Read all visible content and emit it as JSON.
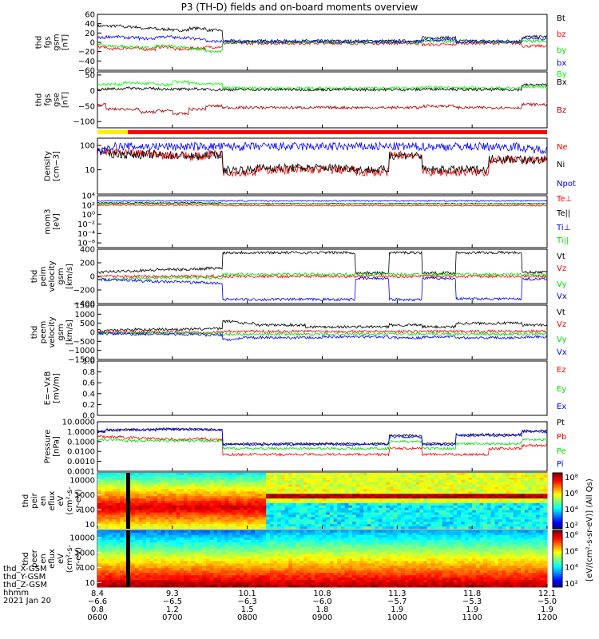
{
  "title": "P3 (TH-D) fields and on-board moments overview",
  "colors": {
    "black": "#000000",
    "red": "#ff0000",
    "green": "#00dd00",
    "blue": "#0000ff",
    "darkred": "#aa0000",
    "lime": "#00ff00"
  },
  "chart_data": [
    {
      "type": "line",
      "ylabel": [
        "thd",
        "fgs",
        "gsm",
        "[nT]"
      ],
      "ylim": [
        -60,
        60
      ],
      "yticks": [
        "60",
        "40",
        "20",
        "0",
        "−20",
        "−40",
        "−60"
      ],
      "series": [
        {
          "name": "Bt",
          "color": "#000000",
          "profile": [
            35,
            35,
            33,
            30,
            28,
            26,
            30,
            26,
            3,
            3,
            3,
            3,
            3,
            3,
            3,
            3,
            3,
            3,
            3,
            3,
            10,
            10,
            3,
            3,
            3,
            3,
            12,
            12
          ]
        },
        {
          "name": "bz",
          "color": "#ff0000",
          "profile": [
            -10,
            -14,
            -12,
            -15,
            -10,
            -15,
            -12,
            -10,
            -2,
            -2,
            -2,
            -2,
            -2,
            -2,
            -2,
            -2,
            -2,
            -2,
            -2,
            -2,
            -5,
            -5,
            -2,
            -2,
            -2,
            -2,
            -8,
            -8
          ]
        },
        {
          "name": "by",
          "color": "#00dd00",
          "profile": [
            -5,
            -8,
            -10,
            -12,
            -8,
            -10,
            -15,
            -20,
            0,
            0,
            0,
            0,
            0,
            0,
            0,
            0,
            0,
            0,
            0,
            0,
            2,
            2,
            0,
            0,
            0,
            0,
            2,
            2
          ]
        },
        {
          "name": "bx",
          "color": "#0000ff",
          "profile": [
            10,
            12,
            10,
            8,
            12,
            10,
            8,
            2,
            1,
            1,
            1,
            1,
            1,
            1,
            1,
            1,
            1,
            1,
            1,
            1,
            5,
            5,
            1,
            1,
            1,
            1,
            8,
            8
          ]
        }
      ]
    },
    {
      "type": "line",
      "ylabel": [
        "thd",
        "fgs",
        "gse",
        "[nT]"
      ],
      "yticks": [
        "50",
        "0",
        "−50",
        "−100"
      ],
      "ylim": [
        -120,
        60
      ],
      "series": [
        {
          "name": "By",
          "color": "#00ff00",
          "profile": [
            20,
            20,
            25,
            22,
            18,
            28,
            22,
            20,
            8,
            8,
            8,
            8,
            8,
            8,
            8,
            8,
            8,
            8,
            8,
            8,
            10,
            10,
            8,
            8,
            8,
            8,
            12,
            12
          ]
        },
        {
          "name": "Bx",
          "color": "#000000",
          "profile": [
            5,
            5,
            8,
            6,
            5,
            4,
            5,
            3,
            3,
            3,
            3,
            3,
            3,
            3,
            3,
            3,
            3,
            3,
            3,
            3,
            5,
            5,
            3,
            3,
            3,
            3,
            18,
            18
          ]
        },
        {
          "name": "Bz",
          "color": "#aa0000",
          "profile": [
            -45,
            -60,
            -60,
            -70,
            -65,
            -75,
            -60,
            -50,
            -55,
            -55,
            -55,
            -55,
            -55,
            -55,
            -55,
            -55,
            -55,
            -55,
            -55,
            -55,
            -50,
            -50,
            -55,
            -55,
            -55,
            -55,
            -45,
            -45
          ]
        }
      ]
    },
    {
      "type": "line",
      "ylabel": [
        "Density",
        "[cm−3]"
      ],
      "ylog": true,
      "ylim": [
        1,
        200
      ],
      "yticks": [
        "100",
        "10"
      ],
      "series": [
        {
          "name": "Ne",
          "color": "#ff0000",
          "profile": [
            60,
            50,
            45,
            45,
            40,
            40,
            35,
            45,
            8,
            8,
            10,
            10,
            10,
            10,
            10,
            10,
            8,
            8,
            40,
            40,
            8,
            8,
            8,
            8,
            25,
            25,
            25,
            25
          ]
        },
        {
          "name": "Ni",
          "color": "#000000",
          "profile": [
            60,
            45,
            42,
            42,
            40,
            38,
            35,
            42,
            10,
            10,
            12,
            12,
            12,
            12,
            12,
            12,
            10,
            10,
            40,
            40,
            10,
            10,
            10,
            10,
            28,
            28,
            25,
            25
          ]
        },
        {
          "name": "Npot",
          "color": "#0000ff",
          "profile": [
            60,
            90,
            90,
            90,
            90,
            90,
            90,
            90,
            90,
            90,
            90,
            90,
            90,
            90,
            90,
            90,
            90,
            90,
            90,
            90,
            90,
            90,
            90,
            90,
            90,
            90,
            70,
            70
          ]
        }
      ]
    },
    {
      "type": "line",
      "ylabel": [
        "mom3",
        "[eV]"
      ],
      "ylog": true,
      "ylim": [
        1e-07,
        10000
      ],
      "yticks": [
        "10⁴",
        "10²",
        "10⁰",
        "10⁻²",
        "10⁻⁴",
        "10⁻⁶"
      ],
      "series": [
        {
          "name": "Te⊥",
          "color": "#ff0000",
          "profile": [
            100,
            100,
            100,
            100,
            100,
            100,
            100,
            100,
            80,
            80,
            80,
            80,
            80,
            80,
            80,
            80,
            80,
            80,
            80,
            80,
            80,
            80,
            80,
            80,
            80,
            80,
            80,
            80
          ]
        },
        {
          "name": "Te||",
          "color": "#000000",
          "profile": [
            300,
            300,
            300,
            300,
            300,
            300,
            300,
            300,
            200,
            200,
            200,
            200,
            200,
            200,
            200,
            200,
            200,
            200,
            200,
            200,
            200,
            200,
            200,
            200,
            200,
            200,
            200,
            200
          ]
        },
        {
          "name": "Ti⊥",
          "color": "#0000ff",
          "profile": [
            800,
            800,
            800,
            800,
            800,
            800,
            800,
            800,
            800,
            800,
            800,
            800,
            800,
            800,
            800,
            800,
            800,
            800,
            800,
            800,
            800,
            800,
            800,
            800,
            800,
            800,
            800,
            800
          ]
        },
        {
          "name": "Ti||",
          "color": "#00dd00",
          "profile": [
            200,
            200,
            200,
            200,
            200,
            200,
            200,
            200,
            200,
            200,
            200,
            200,
            200,
            200,
            200,
            200,
            200,
            200,
            200,
            200,
            200,
            200,
            200,
            200,
            200,
            200,
            200,
            200
          ]
        }
      ]
    },
    {
      "type": "line",
      "ylabel": [
        "thd",
        "peim",
        "velocity",
        "gsm",
        "[km/s]"
      ],
      "ylim": [
        -400,
        400
      ],
      "yticks": [
        "400",
        "200",
        "0",
        "−200",
        "−400"
      ],
      "series": [
        {
          "name": "Vt",
          "color": "#000000",
          "profile": [
            60,
            70,
            80,
            90,
            100,
            100,
            110,
            120,
            350,
            350,
            350,
            350,
            350,
            350,
            350,
            350,
            50,
            50,
            350,
            350,
            50,
            50,
            350,
            350,
            350,
            350,
            60,
            60
          ]
        },
        {
          "name": "Vz",
          "color": "#ff0000",
          "profile": [
            0,
            0,
            0,
            0,
            0,
            0,
            0,
            0,
            0,
            0,
            0,
            0,
            0,
            0,
            0,
            0,
            0,
            0,
            0,
            0,
            0,
            0,
            0,
            0,
            0,
            0,
            0,
            0
          ]
        },
        {
          "name": "Vy",
          "color": "#00dd00",
          "profile": [
            -40,
            -40,
            -30,
            -30,
            -20,
            -20,
            -20,
            -20,
            30,
            30,
            30,
            30,
            30,
            30,
            30,
            30,
            30,
            30,
            30,
            30,
            30,
            30,
            30,
            30,
            30,
            30,
            20,
            20
          ]
        },
        {
          "name": "Vx",
          "color": "#0000ff",
          "profile": [
            -50,
            -50,
            -60,
            -70,
            -80,
            -80,
            -90,
            -100,
            -340,
            -340,
            -340,
            -340,
            -340,
            -340,
            -340,
            -340,
            -30,
            -30,
            -340,
            -340,
            -30,
            -30,
            -330,
            -330,
            -330,
            -330,
            -40,
            -40
          ]
        }
      ]
    },
    {
      "type": "line",
      "ylabel": [
        "thd",
        "peem",
        "velocity",
        "gsm",
        "[km/s]"
      ],
      "ylim": [
        -1500,
        1500
      ],
      "yticks": [
        "1500",
        "1000",
        "500",
        "0",
        "−500",
        "−1000",
        "−1500"
      ],
      "series": [
        {
          "name": "Vt",
          "color": "#000000",
          "profile": [
            100,
            120,
            150,
            150,
            160,
            160,
            170,
            200,
            600,
            500,
            400,
            400,
            400,
            300,
            300,
            300,
            300,
            300,
            400,
            400,
            300,
            300,
            500,
            500,
            500,
            500,
            400,
            400
          ]
        },
        {
          "name": "Vz",
          "color": "#ff0000",
          "profile": [
            0,
            0,
            0,
            0,
            0,
            0,
            0,
            0,
            50,
            50,
            50,
            50,
            50,
            50,
            50,
            50,
            50,
            50,
            50,
            50,
            50,
            50,
            50,
            50,
            50,
            50,
            50,
            50
          ]
        },
        {
          "name": "Vy",
          "color": "#00dd00",
          "profile": [
            -50,
            -50,
            -40,
            -40,
            -40,
            -40,
            -40,
            -50,
            -100,
            -100,
            -100,
            -100,
            -100,
            -100,
            -100,
            -100,
            -100,
            -100,
            -100,
            -100,
            -100,
            -100,
            -100,
            -100,
            -100,
            -100,
            -100,
            -100
          ]
        },
        {
          "name": "Vx",
          "color": "#0000ff",
          "profile": [
            -60,
            -80,
            -100,
            -100,
            -100,
            -110,
            -120,
            -150,
            -400,
            -300,
            -300,
            -300,
            -300,
            -300,
            -250,
            -250,
            -250,
            -250,
            -300,
            -300,
            -250,
            -250,
            -300,
            -300,
            -300,
            -300,
            -250,
            -250
          ]
        }
      ]
    },
    {
      "type": "line",
      "ylabel": [
        "E=−VxB",
        "[mV/m]"
      ],
      "ylim": [
        0,
        1
      ],
      "yticks": [
        "1.0",
        "0.8",
        "0.6",
        "0.4",
        "0.2",
        "0.0"
      ],
      "series": [
        {
          "name": "Ez",
          "color": "#ff0000",
          "profile": []
        },
        {
          "name": "Ey",
          "color": "#00dd00",
          "profile": []
        },
        {
          "name": "Ex",
          "color": "#0000ff",
          "profile": []
        }
      ]
    },
    {
      "type": "line",
      "ylabel": [
        "Pressure",
        "[nPa]"
      ],
      "ylog": true,
      "ylim": [
        0.0001,
        10
      ],
      "yticks": [
        "10.0000",
        "1.0000",
        "0.1000",
        "0.0100",
        "0.0010",
        "0.0001"
      ],
      "series": [
        {
          "name": "Pt",
          "color": "#000000",
          "profile": [
            1.0,
            1.5,
            1.6,
            1.6,
            1.8,
            1.8,
            1.8,
            1.6,
            0.06,
            0.06,
            0.06,
            0.06,
            0.06,
            0.06,
            0.06,
            0.06,
            0.06,
            0.06,
            0.4,
            0.4,
            0.06,
            0.06,
            0.5,
            0.5,
            0.5,
            0.5,
            1.2,
            1.2
          ]
        },
        {
          "name": "Pb",
          "color": "#ff0000",
          "profile": [
            0.3,
            0.3,
            0.25,
            0.2,
            0.18,
            0.15,
            0.2,
            0.15,
            0.005,
            0.005,
            0.005,
            0.005,
            0.005,
            0.005,
            0.005,
            0.005,
            0.005,
            0.005,
            0.02,
            0.02,
            0.005,
            0.005,
            0.005,
            0.005,
            0.02,
            0.02,
            0.04,
            0.04
          ]
        },
        {
          "name": "Pe",
          "color": "#00dd00",
          "profile": [
            0.15,
            0.15,
            0.12,
            0.12,
            0.12,
            0.12,
            0.12,
            0.12,
            0.02,
            0.02,
            0.02,
            0.02,
            0.02,
            0.02,
            0.02,
            0.02,
            0.02,
            0.02,
            0.1,
            0.1,
            0.02,
            0.02,
            0.06,
            0.06,
            0.06,
            0.06,
            0.15,
            0.15
          ]
        },
        {
          "name": "Pi",
          "color": "#0000ff",
          "profile": [
            1.0,
            1.4,
            1.5,
            1.5,
            1.7,
            1.7,
            1.7,
            1.5,
            0.05,
            0.05,
            0.05,
            0.05,
            0.05,
            0.05,
            0.05,
            0.05,
            0.05,
            0.05,
            0.3,
            0.3,
            0.05,
            0.05,
            0.4,
            0.4,
            0.4,
            0.4,
            1.0,
            1.0
          ]
        }
      ]
    },
    {
      "type": "heatmap",
      "ylabel": [
        "thd",
        "peir",
        "en",
        "eflux",
        "eV",
        "(cm²-s-",
        "sr-eV)"
      ],
      "ylog": true,
      "ylim": [
        5,
        30000
      ],
      "yticks": [
        "10000",
        "1000",
        "100",
        "10"
      ],
      "colorbar_ticks": [
        "10⁸",
        "10⁶",
        "10⁴",
        "10²"
      ]
    },
    {
      "type": "heatmap",
      "ylabel": [
        "thd",
        "peer",
        "en",
        "eflux",
        "eV",
        "(cm²-s-",
        "sr-eV)"
      ],
      "ylog": true,
      "ylim": [
        5,
        30000
      ],
      "yticks": [
        "10000",
        "1000",
        "100",
        "10"
      ],
      "colorbar_ticks": [
        "10⁸",
        "10⁶",
        "10⁴",
        "10²"
      ],
      "colorbar_label": "[eV/(cm²-s-sr-eV)] (All Qs)"
    }
  ],
  "x_axis": {
    "rows": [
      {
        "label": "thd_X-GSM",
        "values": [
          "8.4",
          "9.3",
          "10.1",
          "10.8",
          "11.3",
          "11.8",
          "12.1"
        ]
      },
      {
        "label": "thd_Y-GSM",
        "values": [
          "−6.6",
          "−6.5",
          "−6.3",
          "−6.0",
          "−5.7",
          "−5.3",
          "−5.0"
        ]
      },
      {
        "label": "thd_Z-GSM",
        "values": [
          "0.8",
          "1.2",
          "1.5",
          "1.8",
          "1.9",
          "1.9",
          "1.9"
        ]
      },
      {
        "label": "hhmm",
        "values": [
          "0600",
          "0700",
          "0800",
          "0900",
          "1000",
          "1100",
          "1200"
        ]
      }
    ],
    "date": "2021 Jan 20"
  }
}
